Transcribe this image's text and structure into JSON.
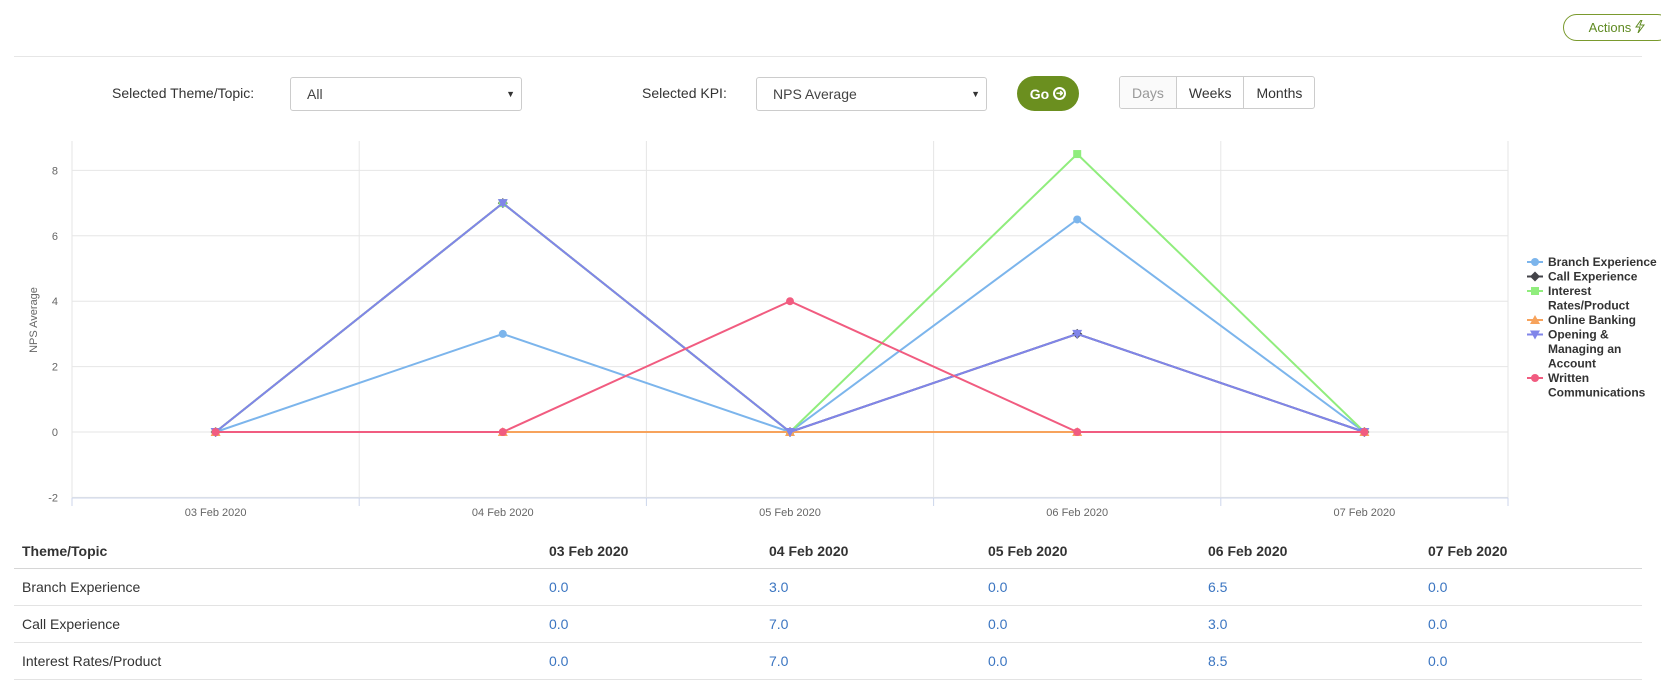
{
  "toolbar": {
    "actions_label": "Actions"
  },
  "filters": {
    "theme_label": "Selected Theme/Topic:",
    "theme_value": "All",
    "kpi_label": "Selected KPI:",
    "kpi_value": "NPS Average",
    "go_label": "Go",
    "periods": [
      "Days",
      "Weeks",
      "Months"
    ],
    "selected_period": "Days"
  },
  "chart_data": {
    "type": "line",
    "x": [
      "03 Feb 2020",
      "04 Feb 2020",
      "05 Feb 2020",
      "06 Feb 2020",
      "07 Feb 2020"
    ],
    "ylabel": "NPS Average",
    "ylim": [
      -2,
      9
    ],
    "yticks": [
      -2,
      0,
      2,
      4,
      6,
      8
    ],
    "grid": true,
    "legend_position": "right",
    "series": [
      {
        "name": "Branch Experience",
        "values": [
          0,
          3,
          0,
          6.5,
          0
        ],
        "color": "#7cb5ec",
        "marker": "circle"
      },
      {
        "name": "Call Experience",
        "values": [
          0,
          7,
          0,
          3,
          0
        ],
        "color": "#434348",
        "marker": "diamond"
      },
      {
        "name": "Interest Rates/Product",
        "values": [
          0,
          7,
          0,
          8.5,
          0
        ],
        "color": "#90ed7d",
        "marker": "square"
      },
      {
        "name": "Online Banking",
        "values": [
          0,
          0,
          0,
          0,
          0
        ],
        "color": "#f7a35c",
        "marker": "triangle"
      },
      {
        "name": "Opening & Managing an Account",
        "values": [
          0,
          7,
          0,
          3,
          0
        ],
        "color": "#8085e9",
        "marker": "triangle-down"
      },
      {
        "name": "Written Communications",
        "values": [
          0,
          0,
          4,
          0,
          0
        ],
        "color": "#f15c80",
        "marker": "circle"
      }
    ],
    "legend_lines": [
      [
        "Branch Experience"
      ],
      [
        "Call Experience"
      ],
      [
        "Interest",
        "Rates/Product"
      ],
      [
        "Online Banking"
      ],
      [
        "Opening &",
        "Managing an",
        "Account"
      ],
      [
        "Written",
        "Communications"
      ]
    ]
  },
  "table": {
    "headers": [
      "Theme/Topic",
      "03 Feb 2020",
      "04 Feb 2020",
      "05 Feb 2020",
      "06 Feb 2020",
      "07 Feb 2020"
    ],
    "rows": [
      [
        "Branch Experience",
        "0.0",
        "3.0",
        "0.0",
        "6.5",
        "0.0"
      ],
      [
        "Call Experience",
        "0.0",
        "7.0",
        "0.0",
        "3.0",
        "0.0"
      ],
      [
        "Interest Rates/Product",
        "0.0",
        "7.0",
        "0.0",
        "8.5",
        "0.0"
      ]
    ]
  }
}
